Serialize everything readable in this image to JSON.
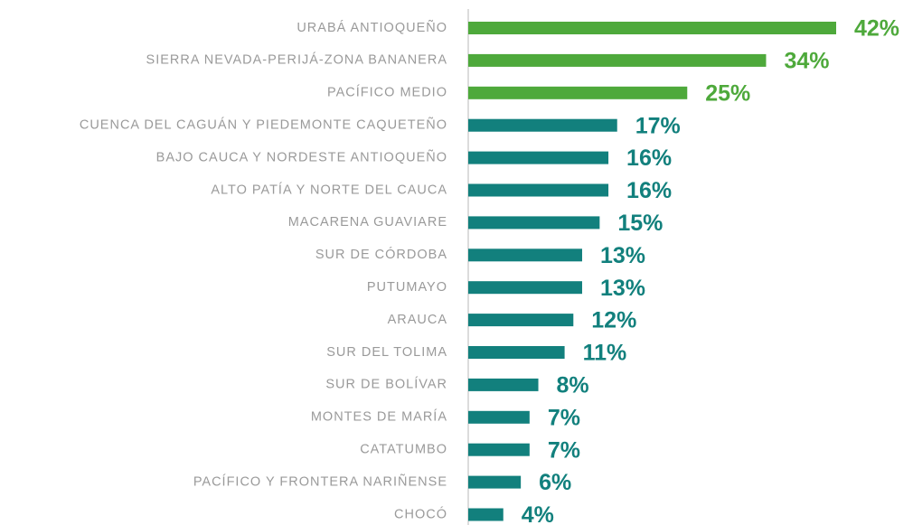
{
  "chart_data": {
    "type": "barh",
    "categories": [
      "URABÁ ANTIOQUEÑO",
      "SIERRA NEVADA-PERIJÁ-ZONA BANANERA",
      "PACÍFICO MEDIO",
      "CUENCA DEL CAGUÁN Y PIEDEMONTE CAQUETEÑO",
      "BAJO CAUCA Y NORDESTE ANTIOQUEÑO",
      "ALTO PATÍA Y NORTE DEL CAUCA",
      "MACARENA GUAVIARE",
      "SUR DE CÓRDOBA",
      "PUTUMAYO",
      "ARAUCA",
      "SUR DEL TOLIMA",
      "SUR DE BOLÍVAR",
      "MONTES DE MARÍA",
      "CATATUMBO",
      "PACÍFICO Y FRONTERA NARIÑENSE",
      "CHOCÓ"
    ],
    "values": [
      42,
      34,
      25,
      17,
      16,
      16,
      15,
      13,
      13,
      12,
      11,
      8,
      7,
      7,
      6,
      4
    ],
    "value_labels": [
      "42%",
      "34%",
      "25%",
      "17%",
      "16%",
      "16%",
      "15%",
      "13%",
      "13%",
      "12%",
      "11%",
      "8%",
      "7%",
      "7%",
      "6%",
      "4%"
    ],
    "colors": [
      "#4ea93b",
      "#4ea93b",
      "#4ea93b",
      "#12807d",
      "#12807d",
      "#12807d",
      "#12807d",
      "#12807d",
      "#12807d",
      "#12807d",
      "#12807d",
      "#12807d",
      "#12807d",
      "#12807d",
      "#12807d",
      "#12807d"
    ]
  }
}
